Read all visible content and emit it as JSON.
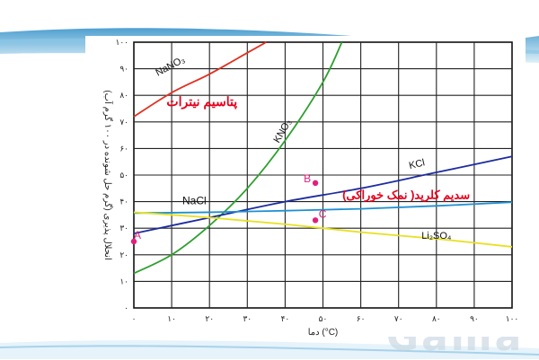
{
  "watermark": "Gama",
  "colors": {
    "sodium_nitrate": "#e03020",
    "potassium_nitrate": "#2ea02e",
    "potassium_chloride": "#1c2ca0",
    "sodium_chloride": "#1e90d0",
    "lithium_sulfate": "#e8e020",
    "points": "#e0207a",
    "annotation_red": "#e8001c",
    "banner": "#2f8fc8"
  },
  "chart_data": {
    "type": "line",
    "xlabel": "دما (°C)",
    "ylabel": "انحلال پذیری (گرم حل شونده در ۱۰۰ گرم آب)",
    "xlim": [
      0,
      100
    ],
    "ylim": [
      0,
      100
    ],
    "x_ticks": [
      "۰",
      "۱۰",
      "۲۰",
      "۳۰",
      "۴۰",
      "۵۰",
      "۶۰",
      "۷۰",
      "۸۰",
      "۹۰",
      "۱۰۰"
    ],
    "y_ticks": [
      "۰",
      "۱۰",
      "۲۰",
      "۳۰",
      "۴۰",
      "۵۰",
      "۶۰",
      "۷۰",
      "۸۰",
      "۹۰",
      "۱۰۰"
    ],
    "grid": true,
    "series": [
      {
        "name": "NaNO3",
        "label": "NaNO₃",
        "color": "#e03020",
        "x": [
          0,
          10,
          20,
          30,
          35
        ],
        "y": [
          72,
          81,
          88,
          96,
          100
        ]
      },
      {
        "name": "KNO3",
        "label": "KNO₃",
        "color": "#2ea02e",
        "x": [
          0,
          10,
          20,
          30,
          40,
          50,
          55
        ],
        "y": [
          13,
          20,
          31,
          45,
          63,
          85,
          100
        ]
      },
      {
        "name": "KCl",
        "label": "KCl",
        "color": "#1c2ca0",
        "x": [
          0,
          20,
          40,
          60,
          80,
          100
        ],
        "y": [
          28,
          34,
          40,
          45,
          51,
          57
        ]
      },
      {
        "name": "NaCl",
        "label": "NaCl",
        "color": "#1e90d0",
        "x": [
          0,
          20,
          40,
          60,
          80,
          100
        ],
        "y": [
          35.7,
          36.0,
          36.6,
          37.3,
          38.4,
          39.8
        ]
      },
      {
        "name": "Li2SO4",
        "label": "Li₂SO₄",
        "color": "#e8e020",
        "x": [
          0,
          20,
          40,
          60,
          80,
          100
        ],
        "y": [
          36,
          34,
          31.5,
          28.5,
          26,
          23
        ]
      }
    ],
    "points": [
      {
        "label": "A",
        "x": 0,
        "y": 25
      },
      {
        "label": "B",
        "x": 48,
        "y": 47
      },
      {
        "label": "C",
        "x": 48,
        "y": 33
      }
    ],
    "annotations": [
      {
        "text": "پتاسیم نیترات"
      },
      {
        "text": "سدیم کلرید( نمک خوراکی)"
      }
    ]
  }
}
